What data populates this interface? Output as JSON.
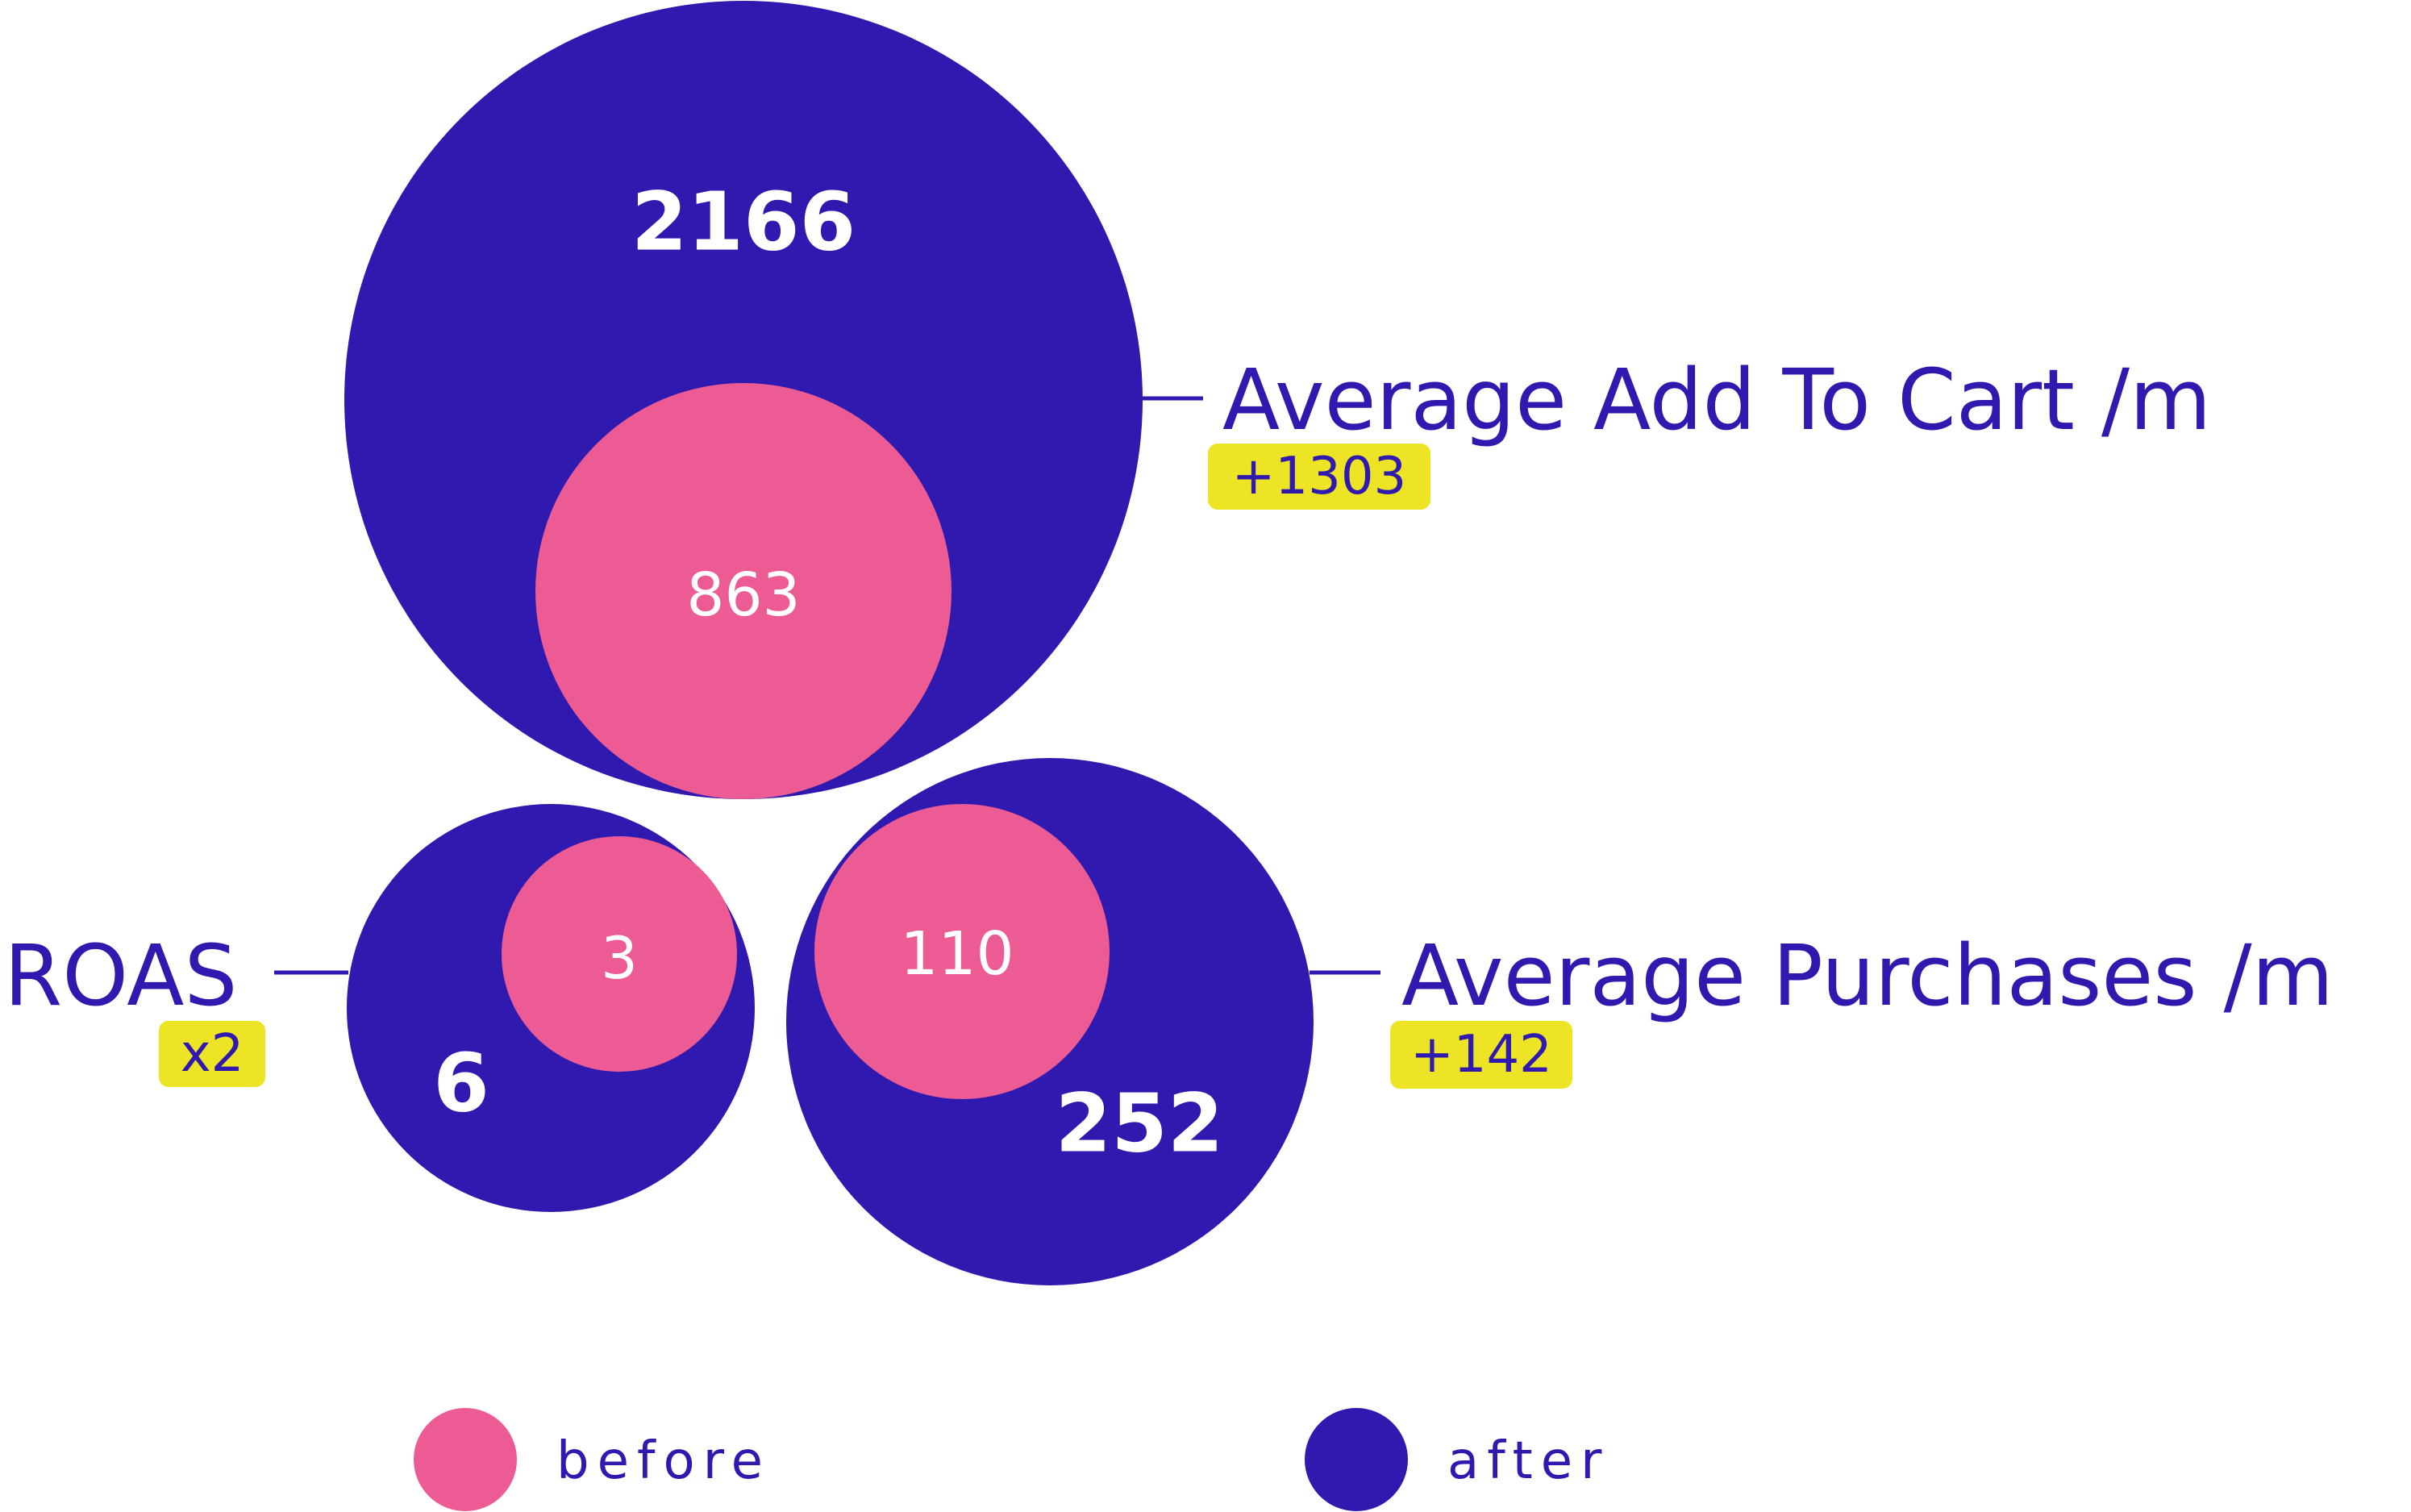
{
  "chart_data": {
    "type": "bubble",
    "legend": [
      {
        "key": "before",
        "label": "before",
        "color": "#ec5b94"
      },
      {
        "key": "after",
        "label": "after",
        "color": "#2f19ae"
      }
    ],
    "metrics": [
      {
        "id": "atc",
        "label": "Average Add To Cart /m",
        "before": 863,
        "after": 2166,
        "badge": "+1303"
      },
      {
        "id": "roas",
        "label": "ROAS",
        "before": 3,
        "after": 6,
        "badge": "x2"
      },
      {
        "id": "purch",
        "label": "Average Purchases /m",
        "before": 110,
        "after": 252,
        "badge": "+142"
      }
    ],
    "colors": {
      "before": "#ec5b94",
      "after": "#2f19ae",
      "badge_bg": "#ece425",
      "text": "#2f19ae"
    }
  }
}
